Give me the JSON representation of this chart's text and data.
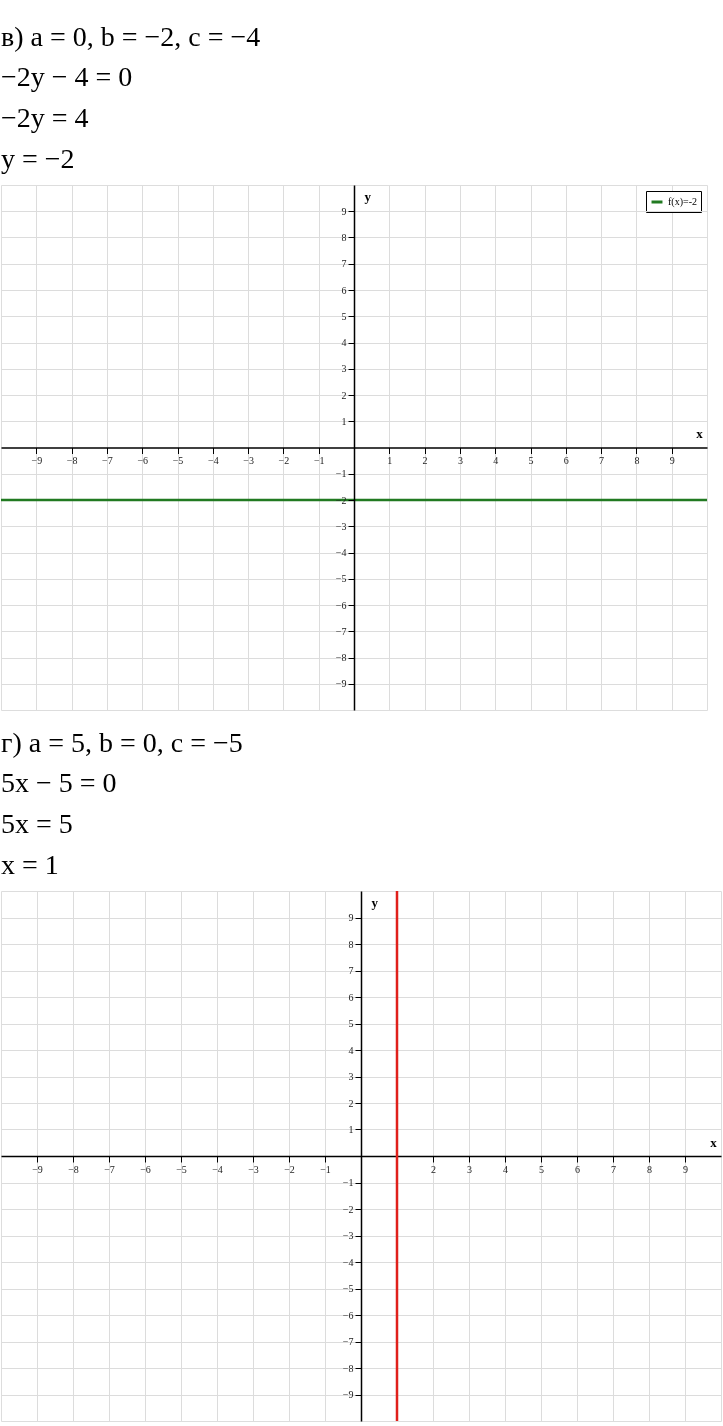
{
  "chart_data": [
    {
      "type": "line",
      "title": "в) a = 0,   b = −2,   c = −4",
      "annotations": [
        "−2y − 4 = 0",
        "−2y = 4",
        "y = −2"
      ],
      "xlabel": "x",
      "ylabel": "y",
      "xlim": [
        -10,
        10
      ],
      "ylim": [
        -10,
        10
      ],
      "xticks": [
        -9,
        -8,
        -7,
        -6,
        -5,
        -4,
        -3,
        -2,
        -1,
        1,
        2,
        3,
        4,
        5,
        6,
        7,
        8,
        9
      ],
      "yticks": [
        -9,
        -8,
        -7,
        -6,
        -5,
        -4,
        -3,
        -2,
        -1,
        1,
        2,
        3,
        4,
        5,
        6,
        7,
        8,
        9
      ],
      "series": [
        {
          "name": "f(x)=-2",
          "color": "#217a21",
          "x": [
            -10,
            10
          ],
          "values": [
            -2,
            -2
          ]
        }
      ],
      "legend": "top right",
      "grid": true
    },
    {
      "type": "line",
      "title": "г) a = 5,   b = 0,   c = −5",
      "annotations": [
        "5x − 5 = 0",
        "5x = 5",
        "x = 1"
      ],
      "xlabel": "x",
      "ylabel": "y",
      "xlim": [
        -10,
        10
      ],
      "ylim": [
        -10,
        10
      ],
      "xticks": [
        -9,
        -8,
        -7,
        -6,
        -5,
        -4,
        -3,
        -2,
        -1,
        {
          "value": 1,
          "label": null
        },
        2,
        3,
        4,
        5,
        6,
        7,
        8,
        9
      ],
      "yticks": [
        -9,
        -8,
        -7,
        -6,
        -5,
        -4,
        -3,
        -2,
        -1,
        1,
        2,
        3,
        4,
        5,
        6,
        7,
        8,
        9
      ],
      "series": [
        {
          "color": "#e0201b",
          "x": [
            1,
            1
          ],
          "values": [
            -10,
            10
          ]
        }
      ],
      "grid": true
    }
  ]
}
